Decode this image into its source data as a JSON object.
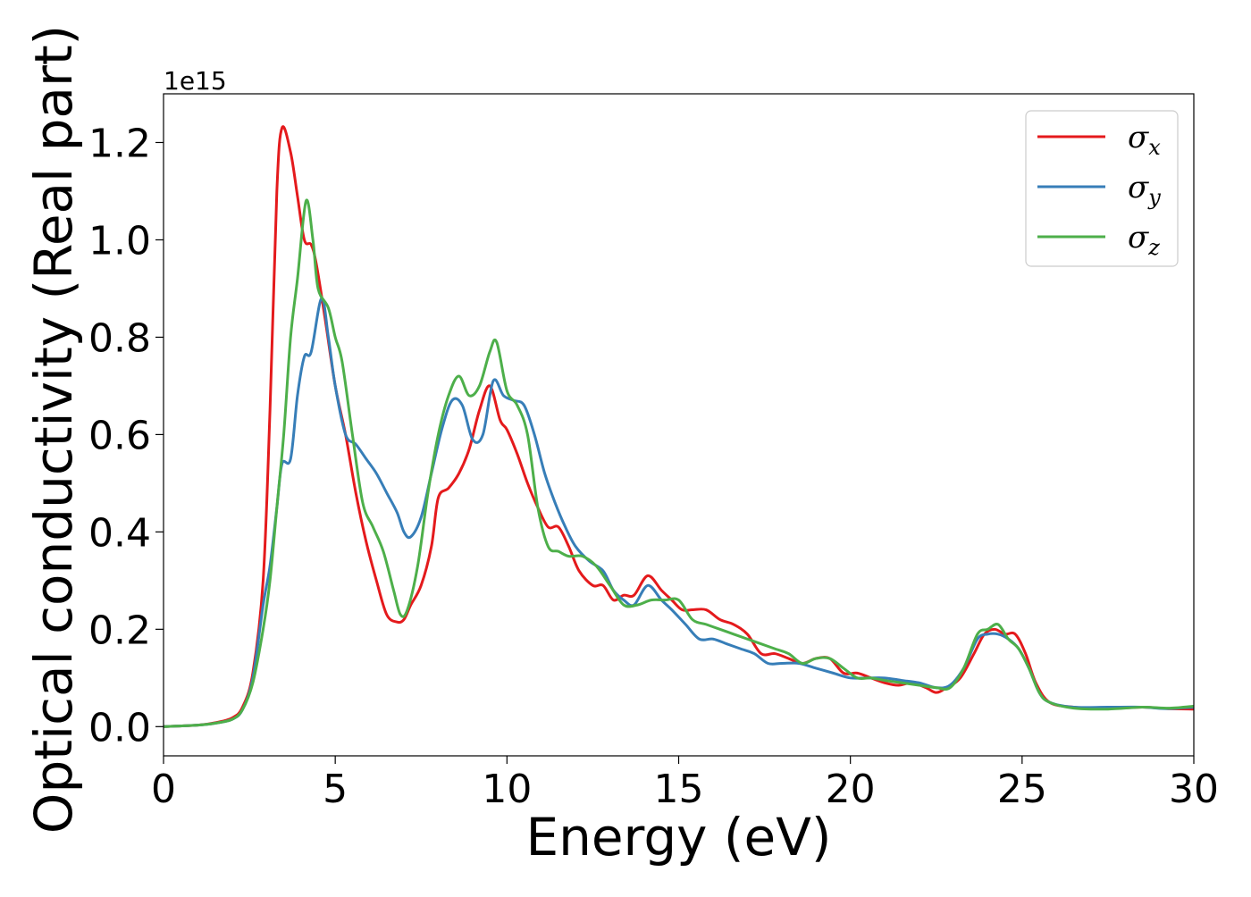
{
  "chart_data": {
    "type": "line",
    "xlabel": "Energy (eV)",
    "ylabel": "Optical conductivity (Real part)",
    "y_offset_label": "1e15",
    "xlim": [
      0,
      30
    ],
    "ylim": [
      -0.06,
      1.3
    ],
    "xticks": [
      {
        "value": 0,
        "label": "0"
      },
      {
        "value": 5,
        "label": "5"
      },
      {
        "value": 10,
        "label": "10"
      },
      {
        "value": 15,
        "label": "15"
      },
      {
        "value": 20,
        "label": "20"
      },
      {
        "value": 25,
        "label": "25"
      },
      {
        "value": 30,
        "label": "30"
      }
    ],
    "yticks": [
      {
        "value": 0.0,
        "label": "0.0"
      },
      {
        "value": 0.2,
        "label": "0.2"
      },
      {
        "value": 0.4,
        "label": "0.4"
      },
      {
        "value": 0.6,
        "label": "0.6"
      },
      {
        "value": 0.8,
        "label": "0.8"
      },
      {
        "value": 1.0,
        "label": "1.0"
      },
      {
        "value": 1.2,
        "label": "1.2"
      }
    ],
    "grid": false,
    "legend_position": "top-right",
    "series": [
      {
        "name": "σ",
        "subscript": "x",
        "color": "#e41a1c",
        "points": [
          [
            0,
            0
          ],
          [
            1,
            0.003
          ],
          [
            1.5,
            0.008
          ],
          [
            2,
            0.018
          ],
          [
            2.3,
            0.04
          ],
          [
            2.6,
            0.11
          ],
          [
            2.9,
            0.3
          ],
          [
            3.1,
            0.65
          ],
          [
            3.3,
            1.1
          ],
          [
            3.45,
            1.23
          ],
          [
            3.7,
            1.18
          ],
          [
            3.9,
            1.09
          ],
          [
            4.1,
            1.0
          ],
          [
            4.3,
            0.99
          ],
          [
            4.45,
            0.95
          ],
          [
            4.7,
            0.84
          ],
          [
            5.0,
            0.7
          ],
          [
            5.3,
            0.6
          ],
          [
            5.6,
            0.48
          ],
          [
            5.9,
            0.38
          ],
          [
            6.2,
            0.3
          ],
          [
            6.5,
            0.23
          ],
          [
            6.8,
            0.215
          ],
          [
            7.0,
            0.22
          ],
          [
            7.2,
            0.25
          ],
          [
            7.5,
            0.29
          ],
          [
            7.8,
            0.37
          ],
          [
            8.0,
            0.47
          ],
          [
            8.3,
            0.49
          ],
          [
            8.6,
            0.52
          ],
          [
            8.9,
            0.57
          ],
          [
            9.2,
            0.65
          ],
          [
            9.5,
            0.7
          ],
          [
            9.8,
            0.63
          ],
          [
            10.0,
            0.61
          ],
          [
            10.3,
            0.56
          ],
          [
            10.6,
            0.5
          ],
          [
            10.9,
            0.45
          ],
          [
            11.2,
            0.41
          ],
          [
            11.5,
            0.41
          ],
          [
            11.8,
            0.37
          ],
          [
            12.1,
            0.32
          ],
          [
            12.5,
            0.29
          ],
          [
            12.8,
            0.29
          ],
          [
            13.1,
            0.26
          ],
          [
            13.4,
            0.27
          ],
          [
            13.7,
            0.27
          ],
          [
            14.1,
            0.31
          ],
          [
            14.5,
            0.28
          ],
          [
            14.8,
            0.26
          ],
          [
            15.1,
            0.24
          ],
          [
            15.4,
            0.24
          ],
          [
            15.8,
            0.24
          ],
          [
            16.2,
            0.22
          ],
          [
            16.6,
            0.21
          ],
          [
            17.0,
            0.19
          ],
          [
            17.4,
            0.15
          ],
          [
            17.8,
            0.15
          ],
          [
            18.2,
            0.14
          ],
          [
            18.6,
            0.13
          ],
          [
            19.0,
            0.14
          ],
          [
            19.4,
            0.14
          ],
          [
            19.8,
            0.11
          ],
          [
            20.2,
            0.11
          ],
          [
            20.6,
            0.1
          ],
          [
            21.0,
            0.09
          ],
          [
            21.4,
            0.085
          ],
          [
            21.8,
            0.09
          ],
          [
            22.2,
            0.08
          ],
          [
            22.5,
            0.07
          ],
          [
            22.8,
            0.08
          ],
          [
            23.2,
            0.1
          ],
          [
            23.6,
            0.15
          ],
          [
            23.9,
            0.19
          ],
          [
            24.2,
            0.2
          ],
          [
            24.5,
            0.19
          ],
          [
            24.8,
            0.19
          ],
          [
            25.1,
            0.15
          ],
          [
            25.4,
            0.09
          ],
          [
            25.8,
            0.05
          ],
          [
            26.5,
            0.04
          ],
          [
            27.5,
            0.037
          ],
          [
            28.5,
            0.04
          ],
          [
            29.2,
            0.037
          ],
          [
            30,
            0.036
          ]
        ]
      },
      {
        "name": "σ",
        "subscript": "y",
        "color": "#377eb8",
        "points": [
          [
            0,
            0
          ],
          [
            1,
            0.003
          ],
          [
            1.5,
            0.007
          ],
          [
            2,
            0.015
          ],
          [
            2.3,
            0.035
          ],
          [
            2.6,
            0.1
          ],
          [
            2.9,
            0.25
          ],
          [
            3.1,
            0.33
          ],
          [
            3.3,
            0.45
          ],
          [
            3.45,
            0.54
          ],
          [
            3.7,
            0.55
          ],
          [
            3.9,
            0.68
          ],
          [
            4.1,
            0.76
          ],
          [
            4.3,
            0.77
          ],
          [
            4.6,
            0.88
          ],
          [
            4.8,
            0.8
          ],
          [
            5.0,
            0.7
          ],
          [
            5.3,
            0.6
          ],
          [
            5.6,
            0.58
          ],
          [
            5.9,
            0.55
          ],
          [
            6.2,
            0.52
          ],
          [
            6.5,
            0.48
          ],
          [
            6.8,
            0.44
          ],
          [
            7.0,
            0.4
          ],
          [
            7.2,
            0.39
          ],
          [
            7.5,
            0.43
          ],
          [
            7.8,
            0.52
          ],
          [
            8.1,
            0.61
          ],
          [
            8.4,
            0.67
          ],
          [
            8.7,
            0.66
          ],
          [
            9.0,
            0.59
          ],
          [
            9.3,
            0.6
          ],
          [
            9.6,
            0.71
          ],
          [
            9.9,
            0.68
          ],
          [
            10.2,
            0.67
          ],
          [
            10.5,
            0.66
          ],
          [
            10.8,
            0.6
          ],
          [
            11.1,
            0.52
          ],
          [
            11.4,
            0.46
          ],
          [
            11.7,
            0.41
          ],
          [
            12.0,
            0.37
          ],
          [
            12.4,
            0.34
          ],
          [
            12.8,
            0.32
          ],
          [
            13.1,
            0.28
          ],
          [
            13.4,
            0.26
          ],
          [
            13.7,
            0.25
          ],
          [
            14.1,
            0.29
          ],
          [
            14.5,
            0.26
          ],
          [
            14.8,
            0.24
          ],
          [
            15.2,
            0.21
          ],
          [
            15.6,
            0.18
          ],
          [
            16.0,
            0.18
          ],
          [
            16.4,
            0.17
          ],
          [
            16.8,
            0.16
          ],
          [
            17.2,
            0.15
          ],
          [
            17.6,
            0.13
          ],
          [
            18.0,
            0.13
          ],
          [
            18.5,
            0.13
          ],
          [
            19.0,
            0.12
          ],
          [
            19.5,
            0.11
          ],
          [
            20.0,
            0.1
          ],
          [
            20.5,
            0.1
          ],
          [
            21.0,
            0.1
          ],
          [
            21.5,
            0.095
          ],
          [
            22.0,
            0.09
          ],
          [
            22.5,
            0.08
          ],
          [
            22.9,
            0.085
          ],
          [
            23.3,
            0.12
          ],
          [
            23.7,
            0.18
          ],
          [
            24.0,
            0.19
          ],
          [
            24.3,
            0.19
          ],
          [
            24.6,
            0.18
          ],
          [
            24.9,
            0.16
          ],
          [
            25.2,
            0.12
          ],
          [
            25.5,
            0.07
          ],
          [
            25.8,
            0.05
          ],
          [
            26.5,
            0.04
          ],
          [
            27.5,
            0.04
          ],
          [
            28.5,
            0.04
          ],
          [
            29.2,
            0.037
          ],
          [
            30,
            0.04
          ]
        ]
      },
      {
        "name": "σ",
        "subscript": "z",
        "color": "#4daf4a",
        "points": [
          [
            0,
            0
          ],
          [
            1,
            0.003
          ],
          [
            1.5,
            0.007
          ],
          [
            2,
            0.015
          ],
          [
            2.3,
            0.035
          ],
          [
            2.6,
            0.09
          ],
          [
            2.9,
            0.2
          ],
          [
            3.1,
            0.3
          ],
          [
            3.3,
            0.45
          ],
          [
            3.5,
            0.6
          ],
          [
            3.7,
            0.8
          ],
          [
            3.9,
            0.92
          ],
          [
            4.15,
            1.08
          ],
          [
            4.35,
            1.0
          ],
          [
            4.5,
            0.9
          ],
          [
            4.8,
            0.86
          ],
          [
            5.0,
            0.8
          ],
          [
            5.2,
            0.75
          ],
          [
            5.5,
            0.6
          ],
          [
            5.8,
            0.46
          ],
          [
            6.1,
            0.41
          ],
          [
            6.4,
            0.36
          ],
          [
            6.7,
            0.28
          ],
          [
            6.9,
            0.23
          ],
          [
            7.1,
            0.24
          ],
          [
            7.4,
            0.33
          ],
          [
            7.7,
            0.48
          ],
          [
            8.0,
            0.6
          ],
          [
            8.3,
            0.68
          ],
          [
            8.6,
            0.72
          ],
          [
            8.9,
            0.68
          ],
          [
            9.2,
            0.7
          ],
          [
            9.5,
            0.77
          ],
          [
            9.7,
            0.79
          ],
          [
            10.0,
            0.69
          ],
          [
            10.3,
            0.66
          ],
          [
            10.6,
            0.6
          ],
          [
            10.9,
            0.45
          ],
          [
            11.2,
            0.37
          ],
          [
            11.5,
            0.36
          ],
          [
            11.8,
            0.35
          ],
          [
            12.2,
            0.35
          ],
          [
            12.6,
            0.33
          ],
          [
            13.0,
            0.29
          ],
          [
            13.4,
            0.25
          ],
          [
            13.8,
            0.25
          ],
          [
            14.2,
            0.26
          ],
          [
            14.6,
            0.26
          ],
          [
            15.0,
            0.26
          ],
          [
            15.4,
            0.22
          ],
          [
            15.8,
            0.21
          ],
          [
            16.2,
            0.2
          ],
          [
            16.6,
            0.19
          ],
          [
            17.0,
            0.18
          ],
          [
            17.4,
            0.17
          ],
          [
            17.8,
            0.16
          ],
          [
            18.2,
            0.15
          ],
          [
            18.6,
            0.13
          ],
          [
            19.0,
            0.14
          ],
          [
            19.4,
            0.14
          ],
          [
            19.8,
            0.12
          ],
          [
            20.2,
            0.1
          ],
          [
            20.6,
            0.1
          ],
          [
            21.0,
            0.095
          ],
          [
            21.5,
            0.09
          ],
          [
            22.0,
            0.085
          ],
          [
            22.5,
            0.08
          ],
          [
            22.9,
            0.08
          ],
          [
            23.3,
            0.12
          ],
          [
            23.7,
            0.19
          ],
          [
            24.0,
            0.2
          ],
          [
            24.3,
            0.21
          ],
          [
            24.6,
            0.18
          ],
          [
            24.9,
            0.16
          ],
          [
            25.2,
            0.12
          ],
          [
            25.5,
            0.07
          ],
          [
            25.8,
            0.05
          ],
          [
            26.5,
            0.038
          ],
          [
            27.5,
            0.036
          ],
          [
            28.5,
            0.04
          ],
          [
            29.3,
            0.038
          ],
          [
            30,
            0.042
          ]
        ]
      }
    ]
  }
}
